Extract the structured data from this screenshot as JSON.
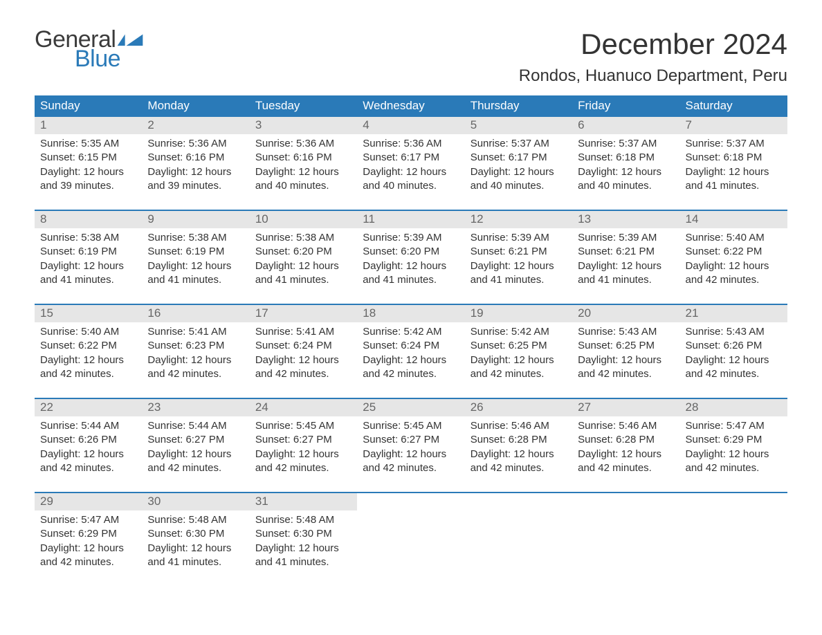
{
  "logo": {
    "text_general": "General",
    "text_blue": "Blue",
    "flag_color": "#2a7ab8"
  },
  "title": "December 2024",
  "location": "Rondos, Huanuco Department, Peru",
  "colors": {
    "header_bg": "#2a7ab8",
    "header_text": "#ffffff",
    "daynum_bg": "#e6e6e6",
    "daynum_text": "#666666",
    "body_text": "#333333",
    "row_border": "#2a7ab8",
    "page_bg": "#ffffff"
  },
  "day_headers": [
    "Sunday",
    "Monday",
    "Tuesday",
    "Wednesday",
    "Thursday",
    "Friday",
    "Saturday"
  ],
  "weeks": [
    [
      {
        "num": "1",
        "sunrise": "Sunrise: 5:35 AM",
        "sunset": "Sunset: 6:15 PM",
        "daylight1": "Daylight: 12 hours",
        "daylight2": "and 39 minutes."
      },
      {
        "num": "2",
        "sunrise": "Sunrise: 5:36 AM",
        "sunset": "Sunset: 6:16 PM",
        "daylight1": "Daylight: 12 hours",
        "daylight2": "and 39 minutes."
      },
      {
        "num": "3",
        "sunrise": "Sunrise: 5:36 AM",
        "sunset": "Sunset: 6:16 PM",
        "daylight1": "Daylight: 12 hours",
        "daylight2": "and 40 minutes."
      },
      {
        "num": "4",
        "sunrise": "Sunrise: 5:36 AM",
        "sunset": "Sunset: 6:17 PM",
        "daylight1": "Daylight: 12 hours",
        "daylight2": "and 40 minutes."
      },
      {
        "num": "5",
        "sunrise": "Sunrise: 5:37 AM",
        "sunset": "Sunset: 6:17 PM",
        "daylight1": "Daylight: 12 hours",
        "daylight2": "and 40 minutes."
      },
      {
        "num": "6",
        "sunrise": "Sunrise: 5:37 AM",
        "sunset": "Sunset: 6:18 PM",
        "daylight1": "Daylight: 12 hours",
        "daylight2": "and 40 minutes."
      },
      {
        "num": "7",
        "sunrise": "Sunrise: 5:37 AM",
        "sunset": "Sunset: 6:18 PM",
        "daylight1": "Daylight: 12 hours",
        "daylight2": "and 41 minutes."
      }
    ],
    [
      {
        "num": "8",
        "sunrise": "Sunrise: 5:38 AM",
        "sunset": "Sunset: 6:19 PM",
        "daylight1": "Daylight: 12 hours",
        "daylight2": "and 41 minutes."
      },
      {
        "num": "9",
        "sunrise": "Sunrise: 5:38 AM",
        "sunset": "Sunset: 6:19 PM",
        "daylight1": "Daylight: 12 hours",
        "daylight2": "and 41 minutes."
      },
      {
        "num": "10",
        "sunrise": "Sunrise: 5:38 AM",
        "sunset": "Sunset: 6:20 PM",
        "daylight1": "Daylight: 12 hours",
        "daylight2": "and 41 minutes."
      },
      {
        "num": "11",
        "sunrise": "Sunrise: 5:39 AM",
        "sunset": "Sunset: 6:20 PM",
        "daylight1": "Daylight: 12 hours",
        "daylight2": "and 41 minutes."
      },
      {
        "num": "12",
        "sunrise": "Sunrise: 5:39 AM",
        "sunset": "Sunset: 6:21 PM",
        "daylight1": "Daylight: 12 hours",
        "daylight2": "and 41 minutes."
      },
      {
        "num": "13",
        "sunrise": "Sunrise: 5:39 AM",
        "sunset": "Sunset: 6:21 PM",
        "daylight1": "Daylight: 12 hours",
        "daylight2": "and 41 minutes."
      },
      {
        "num": "14",
        "sunrise": "Sunrise: 5:40 AM",
        "sunset": "Sunset: 6:22 PM",
        "daylight1": "Daylight: 12 hours",
        "daylight2": "and 42 minutes."
      }
    ],
    [
      {
        "num": "15",
        "sunrise": "Sunrise: 5:40 AM",
        "sunset": "Sunset: 6:22 PM",
        "daylight1": "Daylight: 12 hours",
        "daylight2": "and 42 minutes."
      },
      {
        "num": "16",
        "sunrise": "Sunrise: 5:41 AM",
        "sunset": "Sunset: 6:23 PM",
        "daylight1": "Daylight: 12 hours",
        "daylight2": "and 42 minutes."
      },
      {
        "num": "17",
        "sunrise": "Sunrise: 5:41 AM",
        "sunset": "Sunset: 6:24 PM",
        "daylight1": "Daylight: 12 hours",
        "daylight2": "and 42 minutes."
      },
      {
        "num": "18",
        "sunrise": "Sunrise: 5:42 AM",
        "sunset": "Sunset: 6:24 PM",
        "daylight1": "Daylight: 12 hours",
        "daylight2": "and 42 minutes."
      },
      {
        "num": "19",
        "sunrise": "Sunrise: 5:42 AM",
        "sunset": "Sunset: 6:25 PM",
        "daylight1": "Daylight: 12 hours",
        "daylight2": "and 42 minutes."
      },
      {
        "num": "20",
        "sunrise": "Sunrise: 5:43 AM",
        "sunset": "Sunset: 6:25 PM",
        "daylight1": "Daylight: 12 hours",
        "daylight2": "and 42 minutes."
      },
      {
        "num": "21",
        "sunrise": "Sunrise: 5:43 AM",
        "sunset": "Sunset: 6:26 PM",
        "daylight1": "Daylight: 12 hours",
        "daylight2": "and 42 minutes."
      }
    ],
    [
      {
        "num": "22",
        "sunrise": "Sunrise: 5:44 AM",
        "sunset": "Sunset: 6:26 PM",
        "daylight1": "Daylight: 12 hours",
        "daylight2": "and 42 minutes."
      },
      {
        "num": "23",
        "sunrise": "Sunrise: 5:44 AM",
        "sunset": "Sunset: 6:27 PM",
        "daylight1": "Daylight: 12 hours",
        "daylight2": "and 42 minutes."
      },
      {
        "num": "24",
        "sunrise": "Sunrise: 5:45 AM",
        "sunset": "Sunset: 6:27 PM",
        "daylight1": "Daylight: 12 hours",
        "daylight2": "and 42 minutes."
      },
      {
        "num": "25",
        "sunrise": "Sunrise: 5:45 AM",
        "sunset": "Sunset: 6:27 PM",
        "daylight1": "Daylight: 12 hours",
        "daylight2": "and 42 minutes."
      },
      {
        "num": "26",
        "sunrise": "Sunrise: 5:46 AM",
        "sunset": "Sunset: 6:28 PM",
        "daylight1": "Daylight: 12 hours",
        "daylight2": "and 42 minutes."
      },
      {
        "num": "27",
        "sunrise": "Sunrise: 5:46 AM",
        "sunset": "Sunset: 6:28 PM",
        "daylight1": "Daylight: 12 hours",
        "daylight2": "and 42 minutes."
      },
      {
        "num": "28",
        "sunrise": "Sunrise: 5:47 AM",
        "sunset": "Sunset: 6:29 PM",
        "daylight1": "Daylight: 12 hours",
        "daylight2": "and 42 minutes."
      }
    ],
    [
      {
        "num": "29",
        "sunrise": "Sunrise: 5:47 AM",
        "sunset": "Sunset: 6:29 PM",
        "daylight1": "Daylight: 12 hours",
        "daylight2": "and 42 minutes."
      },
      {
        "num": "30",
        "sunrise": "Sunrise: 5:48 AM",
        "sunset": "Sunset: 6:30 PM",
        "daylight1": "Daylight: 12 hours",
        "daylight2": "and 41 minutes."
      },
      {
        "num": "31",
        "sunrise": "Sunrise: 5:48 AM",
        "sunset": "Sunset: 6:30 PM",
        "daylight1": "Daylight: 12 hours",
        "daylight2": "and 41 minutes."
      },
      {
        "empty": true
      },
      {
        "empty": true
      },
      {
        "empty": true
      },
      {
        "empty": true
      }
    ]
  ]
}
